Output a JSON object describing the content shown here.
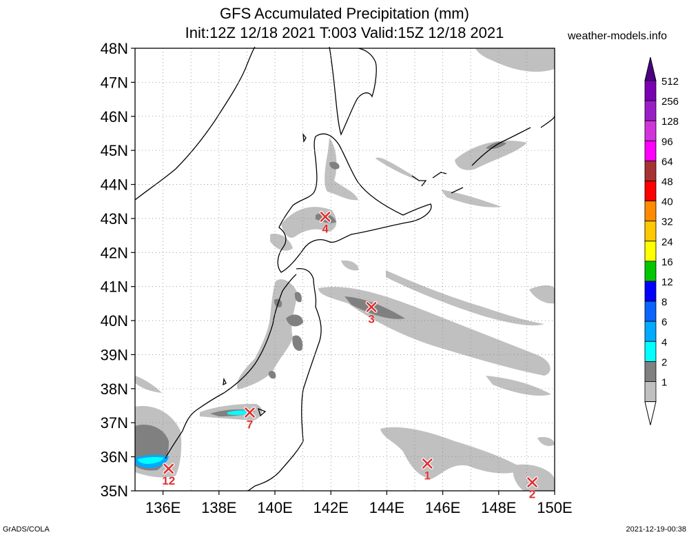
{
  "title": {
    "line1": "GFS Accumulated Precipitation (mm)",
    "line2": "Init:12Z 12/18 2021 T:003 Valid:15Z 12/18 2021"
  },
  "credit": "weather-models.info",
  "footer": {
    "left": "GrADS/COLA",
    "right": "2021-12-19-00:38"
  },
  "map": {
    "lat_labels": [
      "48N",
      "47N",
      "46N",
      "45N",
      "44N",
      "43N",
      "42N",
      "41N",
      "40N",
      "39N",
      "38N",
      "37N",
      "36N",
      "35N"
    ],
    "lat_values": [
      48,
      47,
      46,
      45,
      44,
      43,
      42,
      41,
      40,
      39,
      38,
      37,
      36,
      35
    ],
    "lon_labels": [
      "136E",
      "138E",
      "140E",
      "142E",
      "144E",
      "146E",
      "148E",
      "150E"
    ],
    "lon_values": [
      136,
      138,
      140,
      142,
      144,
      146,
      148,
      150
    ],
    "extent": {
      "lon_min": 135,
      "lon_max": 150,
      "lat_min": 35,
      "lat_max": 48
    },
    "grid": "dotted"
  },
  "colorbar": {
    "labels": [
      "512",
      "256",
      "128",
      "96",
      "64",
      "48",
      "40",
      "32",
      "24",
      "16",
      "12",
      "8",
      "6",
      "4",
      "2",
      "1"
    ],
    "colors": [
      "#7a00b4",
      "#9a1ec8",
      "#d234dc",
      "#ff00ff",
      "#a83232",
      "#ff0000",
      "#ff8c00",
      "#ffc800",
      "#ffff00",
      "#00c800",
      "#0000ff",
      "#0a64ff",
      "#00aaff",
      "#00ffff",
      "#808080",
      "#c0c0c0"
    ]
  },
  "points": [
    {
      "label": "1",
      "lon": 145.45,
      "lat": 35.8
    },
    {
      "label": "2",
      "lon": 149.2,
      "lat": 35.25
    },
    {
      "label": "3",
      "lon": 143.45,
      "lat": 40.4
    },
    {
      "label": "4",
      "lon": 141.8,
      "lat": 43.05
    },
    {
      "label": "7",
      "lon": 139.1,
      "lat": 37.3
    },
    {
      "label": "12",
      "lon": 136.2,
      "lat": 35.65
    }
  ],
  "colors": {
    "light": "#c0c0c0",
    "dark": "#808080",
    "cyan": "#00ffff",
    "blue": "#00aaff",
    "marker": "#e03030"
  }
}
